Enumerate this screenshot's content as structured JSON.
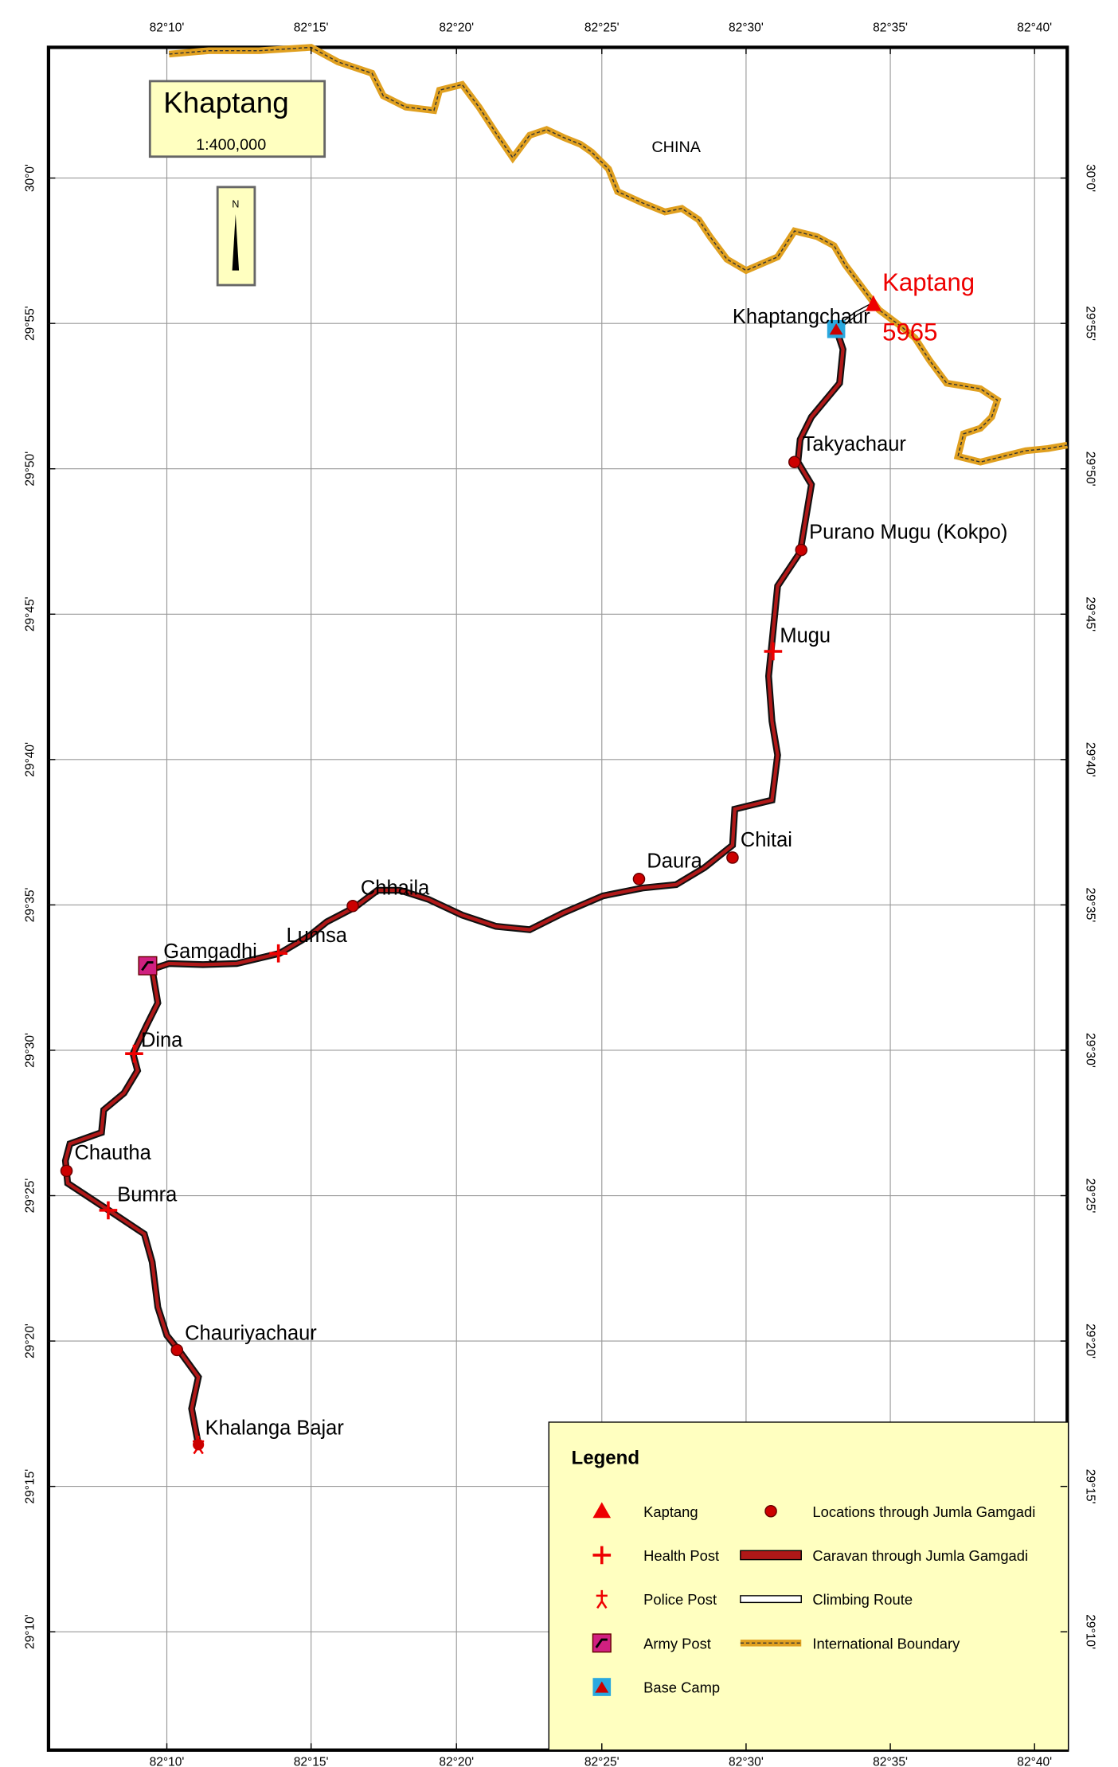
{
  "map": {
    "title": "Khaptang",
    "scale": "1:400,000",
    "north": "N",
    "country": "CHINA",
    "lon_labels": [
      "82°10'",
      "82°15'",
      "82°20'",
      "82°25'",
      "82°30'",
      "82°35'",
      "82°40'"
    ],
    "lat_labels": [
      "30°0'",
      "29°55'",
      "29°50'",
      "29°45'",
      "29°40'",
      "29°35'",
      "29°30'",
      "29°25'",
      "29°20'",
      "29°15'",
      "29°10'"
    ],
    "peak": {
      "name": "Kaptang",
      "elevation": "5965"
    },
    "places": [
      "Khaptangchaur",
      "Takyachaur",
      "Purano Mugu (Kokpo)",
      "Mugu",
      "Chitai",
      "Daura",
      "Chhaila",
      "Lumsa",
      "Gamgadhi",
      "Dina",
      "Chautha",
      "Bumra",
      "Chauriyachaur",
      "Khalanga Bajar"
    ]
  },
  "legend": {
    "title": "Legend",
    "items": [
      "Kaptang",
      "Health Post",
      "Police Post",
      "Army Post",
      "Base Camp",
      "Locations through Jumla Gamgadi",
      "Caravan through Jumla Gamgadi",
      "Climbing Route",
      "International Boundary"
    ]
  }
}
